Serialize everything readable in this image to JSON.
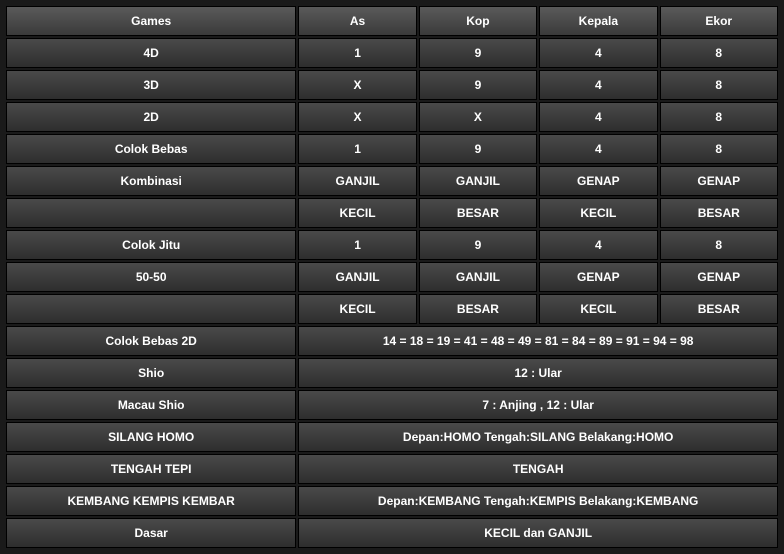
{
  "headers": [
    "Games",
    "As",
    "Kop",
    "Kepala",
    "Ekor"
  ],
  "rows": [
    {
      "game": "4D",
      "vals": [
        "1",
        "9",
        "4",
        "8"
      ]
    },
    {
      "game": "3D",
      "vals": [
        "X",
        "9",
        "4",
        "8"
      ]
    },
    {
      "game": "2D",
      "vals": [
        "X",
        "X",
        "4",
        "8"
      ]
    },
    {
      "game": "Colok Bebas",
      "vals": [
        "1",
        "9",
        "4",
        "8"
      ]
    },
    {
      "game": "Kombinasi",
      "vals": [
        "GANJIL",
        "GANJIL",
        "GENAP",
        "GENAP"
      ]
    },
    {
      "game": "",
      "vals": [
        "KECIL",
        "BESAR",
        "KECIL",
        "BESAR"
      ]
    },
    {
      "game": "Colok Jitu",
      "vals": [
        "1",
        "9",
        "4",
        "8"
      ]
    },
    {
      "game": "50-50",
      "vals": [
        "GANJIL",
        "GANJIL",
        "GENAP",
        "GENAP"
      ]
    },
    {
      "game": "",
      "vals": [
        "KECIL",
        "BESAR",
        "KECIL",
        "BESAR"
      ]
    },
    {
      "game": "Colok Bebas 2D",
      "span": "14 = 18 = 19 = 41 = 48 = 49 = 81 = 84 = 89 = 91 = 94 = 98"
    },
    {
      "game": "Shio",
      "span": "12 : Ular"
    },
    {
      "game": "Macau Shio",
      "span": "7 : Anjing , 12 : Ular"
    },
    {
      "game": "SILANG HOMO",
      "span": "Depan:HOMO Tengah:SILANG Belakang:HOMO"
    },
    {
      "game": "TENGAH TEPI",
      "span": "TENGAH"
    },
    {
      "game": "KEMBANG KEMPIS KEMBAR",
      "span": "Depan:KEMBANG Tengah:KEMPIS Belakang:KEMBANG"
    },
    {
      "game": "Dasar",
      "span": "KECIL dan GANJIL"
    }
  ],
  "style": {
    "header_bg_top": "#5a5a5a",
    "header_bg_bottom": "#3a3a3a",
    "cell_bg_top": "#4a4a4a",
    "cell_bg_bottom": "#2e2e2e",
    "border_color": "#000000",
    "text_color": "#ffffff",
    "font_size": 12,
    "font_weight": "bold"
  }
}
